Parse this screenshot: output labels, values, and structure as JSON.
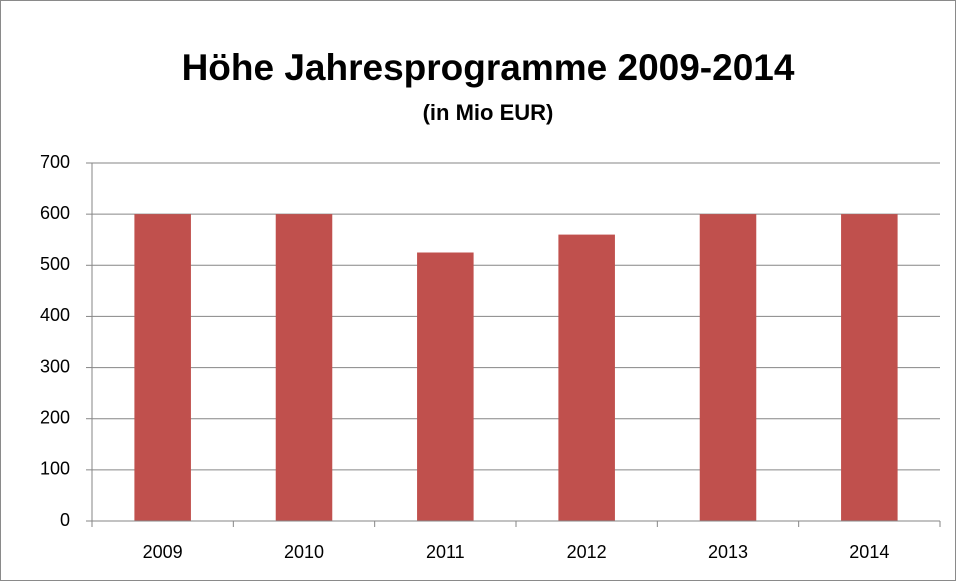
{
  "chart_data": {
    "type": "bar",
    "title": "Höhe Jahresprogramme 2009-2014",
    "subtitle": "(in Mio EUR)",
    "categories": [
      "2009",
      "2010",
      "2011",
      "2012",
      "2013",
      "2014"
    ],
    "values": [
      600,
      600,
      525,
      560,
      600,
      600
    ],
    "color": "#c0504d",
    "ylim": [
      0,
      700
    ],
    "yticks": [
      0,
      100,
      200,
      300,
      400,
      500,
      600,
      700
    ],
    "grid": true
  }
}
